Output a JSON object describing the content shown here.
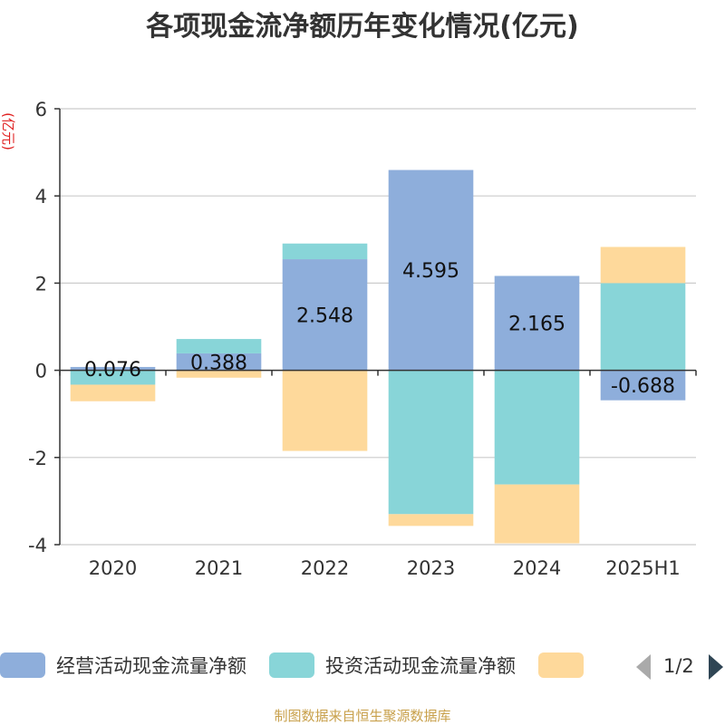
{
  "chart_data": {
    "type": "bar",
    "stacked": true,
    "title": "各项现金流净额历年变化情况(亿元)",
    "ylabel": "(亿元)",
    "xlabel": "",
    "categories": [
      "2020",
      "2021",
      "2022",
      "2023",
      "2024",
      "2025H1"
    ],
    "ylim": [
      -4,
      6
    ],
    "yticks": [
      -4,
      -2,
      0,
      2,
      4,
      6
    ],
    "grid": true,
    "series": [
      {
        "name": "经营活动现金流量净额",
        "color": "#8eaedb",
        "values": [
          0.076,
          0.388,
          2.548,
          4.595,
          2.165,
          -0.688
        ],
        "data_labels": [
          "0.076",
          "0.388",
          "2.548",
          "4.595",
          "2.165",
          "-0.688"
        ]
      },
      {
        "name": "投资活动现金流量净额",
        "color": "#88d5d8",
        "values": [
          -0.33,
          0.33,
          0.36,
          -3.3,
          -2.62,
          2.0
        ]
      },
      {
        "name": "",
        "color": "#fed99b",
        "values": [
          -0.38,
          -0.17,
          -1.85,
          -0.27,
          -1.35,
          0.83
        ]
      }
    ],
    "legend": {
      "position": "bottom",
      "page_indicator": "1/2"
    }
  },
  "source_note": "制图数据来自恒生聚源数据库"
}
